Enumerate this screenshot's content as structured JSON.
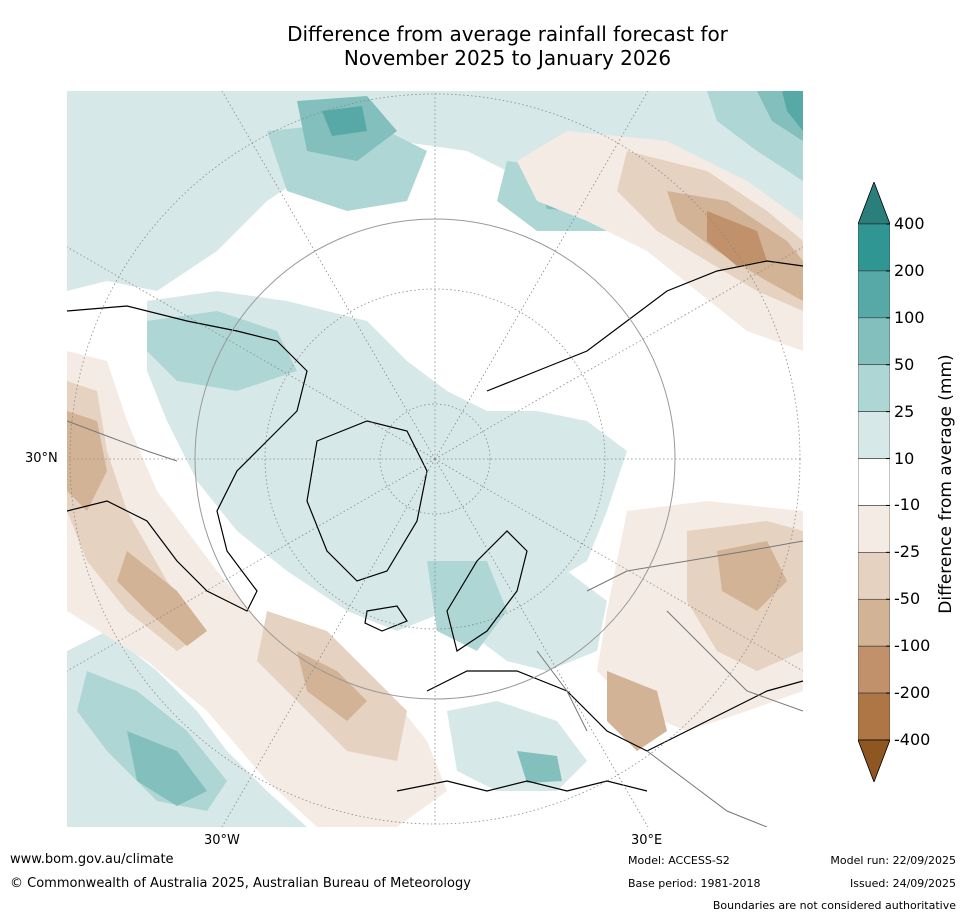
{
  "title": {
    "line1": "Difference from average rainfall forecast for",
    "line2": "November 2025 to January 2026"
  },
  "map": {
    "projection": "north polar stereographic",
    "lat_label": "30°N",
    "lon_labels": {
      "west": "30°W",
      "east": "30°E"
    }
  },
  "colorbar": {
    "label": "Difference from average (mm)",
    "ticks": [
      "400",
      "200",
      "100",
      "50",
      "25",
      "10",
      "-10",
      "-25",
      "-50",
      "-100",
      "-200",
      "-400"
    ],
    "colors": [
      "#2a7e7c",
      "#2f9694",
      "#57a9a8",
      "#82bfbd",
      "#aed6d4",
      "#d6e9e8",
      "#ffffff",
      "#f4ebe4",
      "#e5d2c1",
      "#d2b395",
      "#c0916a",
      "#ad7644",
      "#8f5622"
    ],
    "extend": "both"
  },
  "footer": {
    "website": "www.bom.gov.au/climate",
    "copyright": "© Commonwealth of Australia 2025, Australian Bureau of Meteorology",
    "model": "Model: ACCESS-S2",
    "base_period": "Base period: 1981-2018",
    "model_run": "Model run: 22/09/2025",
    "issued": "Issued: 24/09/2025",
    "disclaimer": "Boundaries are not considered authoritative"
  }
}
